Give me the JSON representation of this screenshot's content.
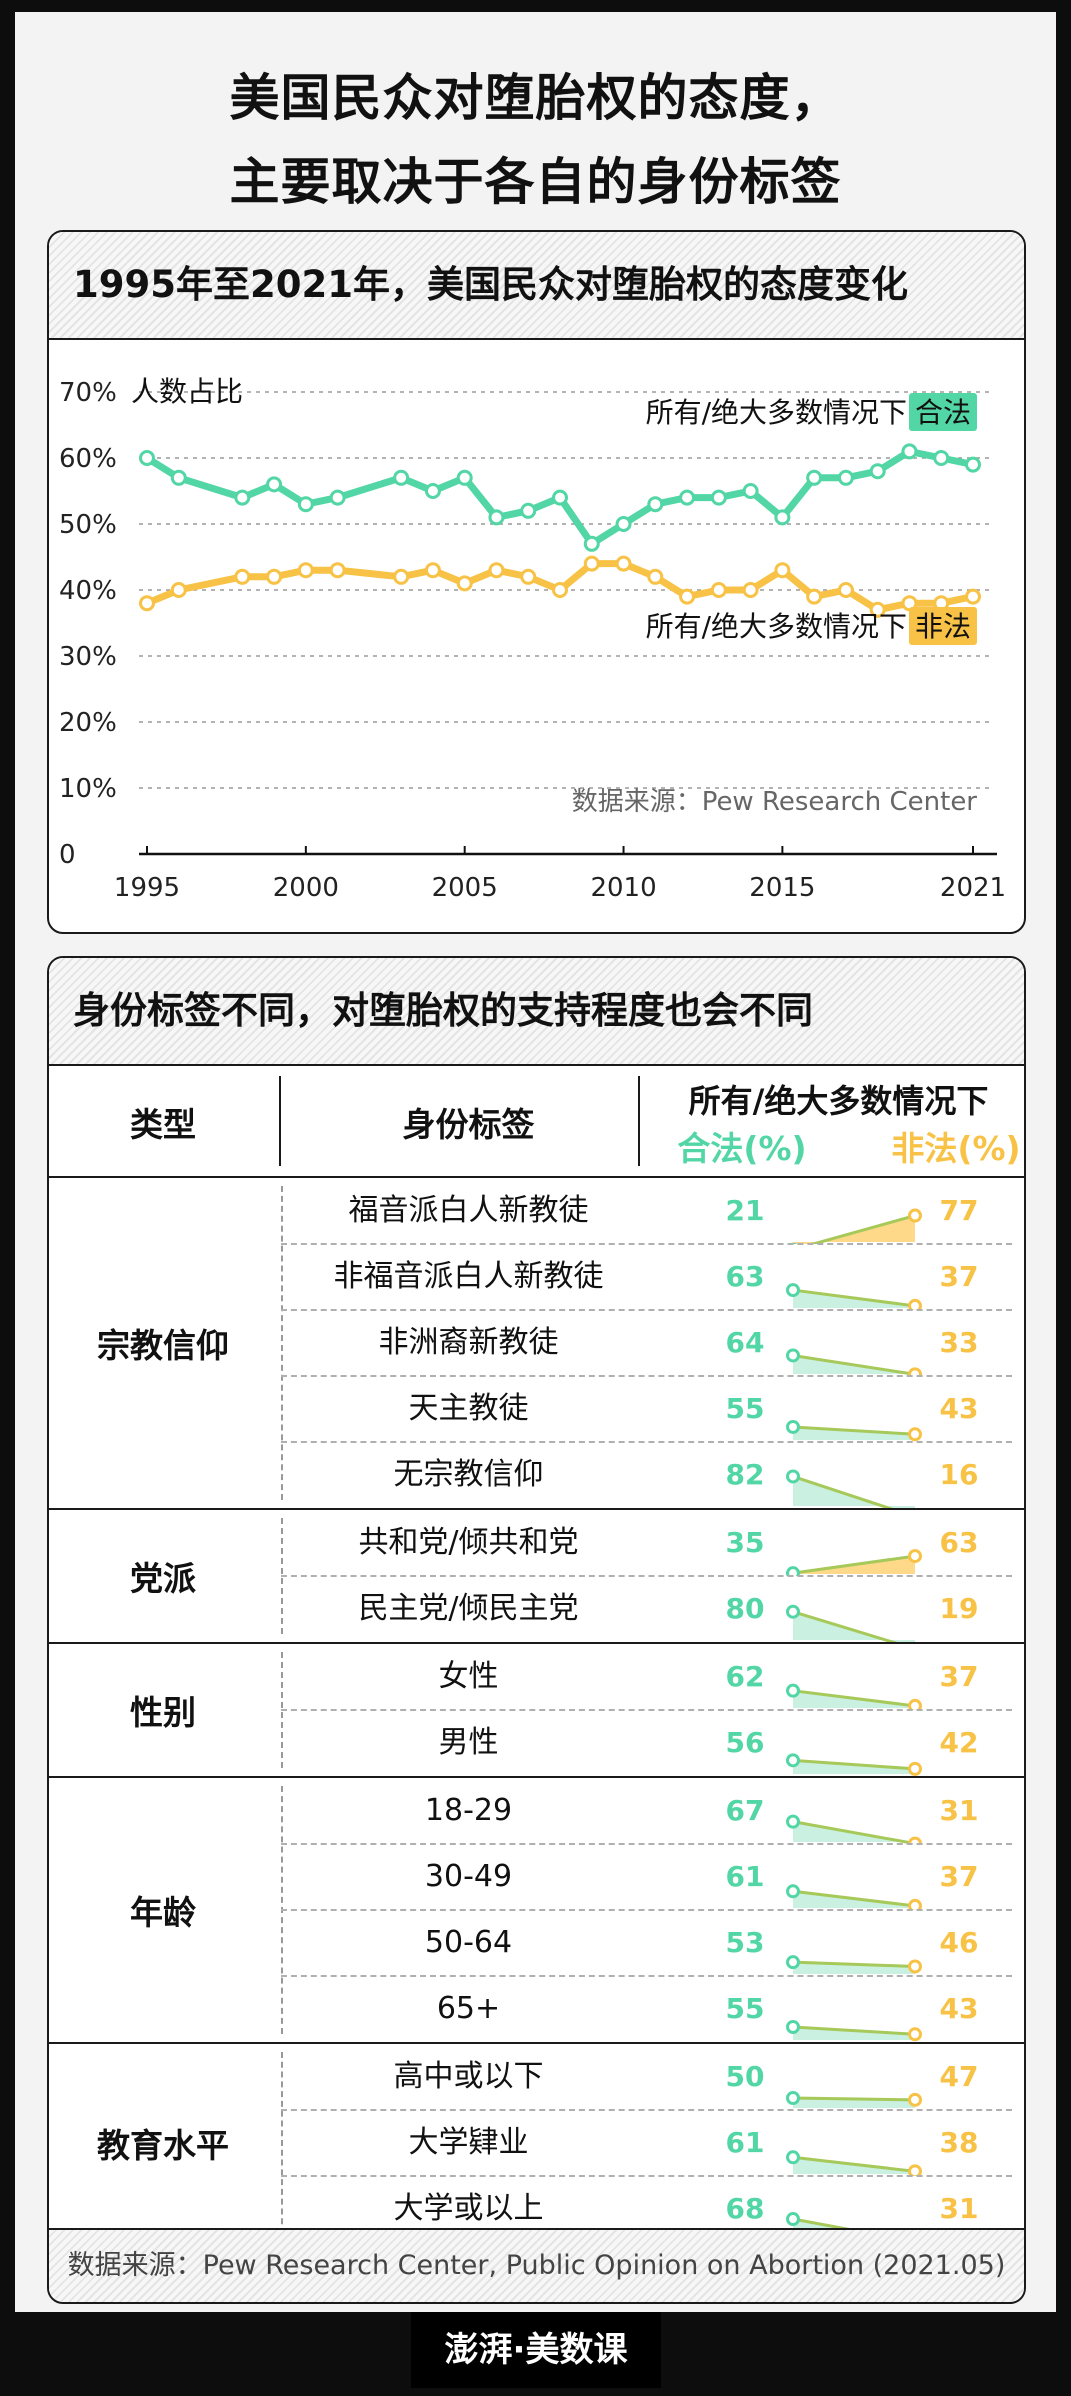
{
  "title": {
    "line1": "美国民众对堕胎权的态度，",
    "line2": "主要取决于各自的身份标签"
  },
  "colors": {
    "legal": "#52d6a5",
    "illegal": "#f7c245",
    "legal_fill": "#c9f0e0",
    "illegal_fill": "#ffd98a"
  },
  "chart_section": {
    "heading": "1995年至2021年，美国民众对堕胎权的态度变化"
  },
  "chart_data": {
    "type": "line",
    "ylabel": "人数占比",
    "ylim": [
      0,
      70
    ],
    "yticks": [
      "0",
      "10%",
      "20%",
      "30%",
      "40%",
      "50%",
      "60%",
      "70%"
    ],
    "xticks": [
      "1995",
      "2000",
      "2005",
      "2010",
      "2015",
      "2021"
    ],
    "grid": true,
    "source": "数据来源：Pew Research Center",
    "series": [
      {
        "name_text": "所有/绝大多数情况下",
        "name_tag": "合法",
        "color": "#52d6a5",
        "points": [
          [
            1995,
            60
          ],
          [
            1996,
            57
          ],
          [
            1998,
            54
          ],
          [
            1999,
            56
          ],
          [
            2000,
            53
          ],
          [
            2001,
            54
          ],
          [
            2003,
            57
          ],
          [
            2004,
            55
          ],
          [
            2005,
            57
          ],
          [
            2006,
            51
          ],
          [
            2007,
            52
          ],
          [
            2008,
            54
          ],
          [
            2009,
            47
          ],
          [
            2010,
            50
          ],
          [
            2011,
            53
          ],
          [
            2012,
            54
          ],
          [
            2013,
            54
          ],
          [
            2014,
            55
          ],
          [
            2015,
            51
          ],
          [
            2016,
            57
          ],
          [
            2017,
            57
          ],
          [
            2018,
            58
          ],
          [
            2019,
            61
          ],
          [
            2020,
            60
          ],
          [
            2021,
            59
          ]
        ]
      },
      {
        "name_text": "所有/绝大多数情况下",
        "name_tag": "非法",
        "color": "#f7c245",
        "points": [
          [
            1995,
            38
          ],
          [
            1996,
            40
          ],
          [
            1998,
            42
          ],
          [
            1999,
            42
          ],
          [
            2000,
            43
          ],
          [
            2001,
            43
          ],
          [
            2003,
            42
          ],
          [
            2004,
            43
          ],
          [
            2005,
            41
          ],
          [
            2006,
            43
          ],
          [
            2007,
            42
          ],
          [
            2008,
            40
          ],
          [
            2009,
            44
          ],
          [
            2010,
            44
          ],
          [
            2011,
            42
          ],
          [
            2012,
            39
          ],
          [
            2013,
            40
          ],
          [
            2014,
            40
          ],
          [
            2015,
            43
          ],
          [
            2016,
            39
          ],
          [
            2017,
            40
          ],
          [
            2018,
            37
          ],
          [
            2019,
            38
          ],
          [
            2020,
            38
          ],
          [
            2021,
            39
          ]
        ]
      }
    ]
  },
  "table_section": {
    "heading": "身份标签不同，对堕胎权的支持程度也会不同",
    "col_type": "类型",
    "col_label": "身份标签",
    "col_desc": "所有/绝大多数情况下",
    "col_legal": "合法(%)",
    "col_illegal": "非法(%)",
    "groups": [
      {
        "name": "宗教信仰",
        "rows": [
          {
            "label": "福音派白人新教徒",
            "legal": 21,
            "illegal": 77
          },
          {
            "label": "非福音派白人新教徒",
            "legal": 63,
            "illegal": 37
          },
          {
            "label": "非洲裔新教徒",
            "legal": 64,
            "illegal": 33
          },
          {
            "label": "天主教徒",
            "legal": 55,
            "illegal": 43
          },
          {
            "label": "无宗教信仰",
            "legal": 82,
            "illegal": 16
          }
        ]
      },
      {
        "name": "党派",
        "rows": [
          {
            "label": "共和党/倾共和党",
            "legal": 35,
            "illegal": 63
          },
          {
            "label": "民主党/倾民主党",
            "legal": 80,
            "illegal": 19
          }
        ]
      },
      {
        "name": "性别",
        "rows": [
          {
            "label": "女性",
            "legal": 62,
            "illegal": 37
          },
          {
            "label": "男性",
            "legal": 56,
            "illegal": 42
          }
        ]
      },
      {
        "name": "年龄",
        "rows": [
          {
            "label": "18-29",
            "legal": 67,
            "illegal": 31
          },
          {
            "label": "30-49",
            "legal": 61,
            "illegal": 37
          },
          {
            "label": "50-64",
            "legal": 53,
            "illegal": 46
          },
          {
            "label": "65+",
            "legal": 55,
            "illegal": 43
          }
        ]
      },
      {
        "name": "教育水平",
        "rows": [
          {
            "label": "高中或以下",
            "legal": 50,
            "illegal": 47
          },
          {
            "label": "大学肄业",
            "legal": 61,
            "illegal": 38
          },
          {
            "label": "大学或以上",
            "legal": 68,
            "illegal": 31
          }
        ]
      }
    ],
    "source": "数据来源：Pew Research Center, Public Opinion on Abortion (2021.05)"
  },
  "brand": "澎湃·美数课"
}
